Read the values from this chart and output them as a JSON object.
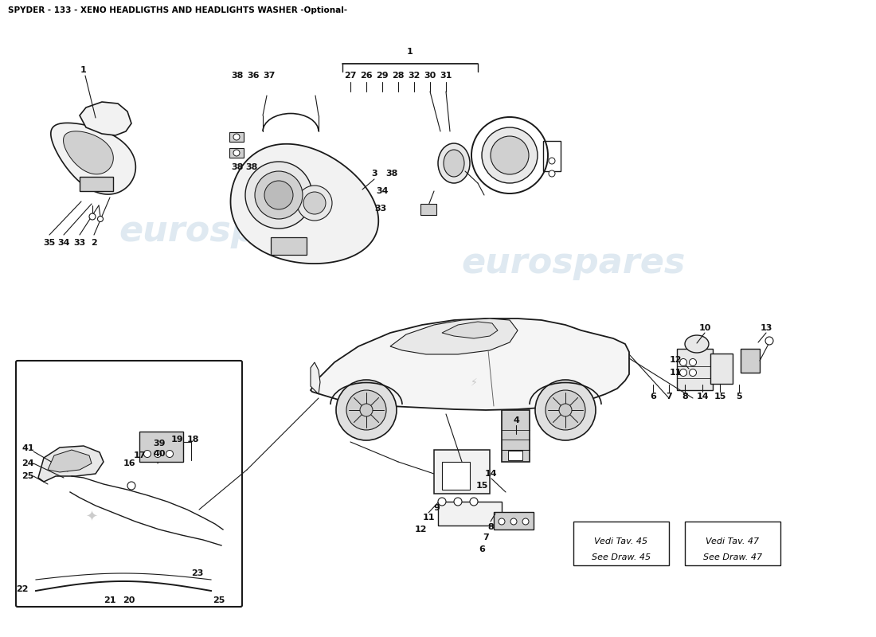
{
  "title": "SPYDER - 133 - XENO HEADLIGTHS AND HEADLIGHTS WASHER -Optional-",
  "title_fontsize": 7.5,
  "background_color": "#ffffff",
  "watermark_text": "eurospares",
  "watermark_color": "#b8cfe0",
  "watermark_alpha": 0.45,
  "ref_box1_lines": [
    "Vedi Tav. 45",
    "See Draw. 45"
  ],
  "ref_box2_lines": [
    "Vedi Tav. 47",
    "See Draw. 47"
  ],
  "label_fontsize": 8.0,
  "label_fontweight": "bold",
  "line_color": "#1a1a1a",
  "fill_color": "#e8e8e8",
  "fill_color2": "#d0d0d0",
  "fill_light": "#f2f2f2"
}
